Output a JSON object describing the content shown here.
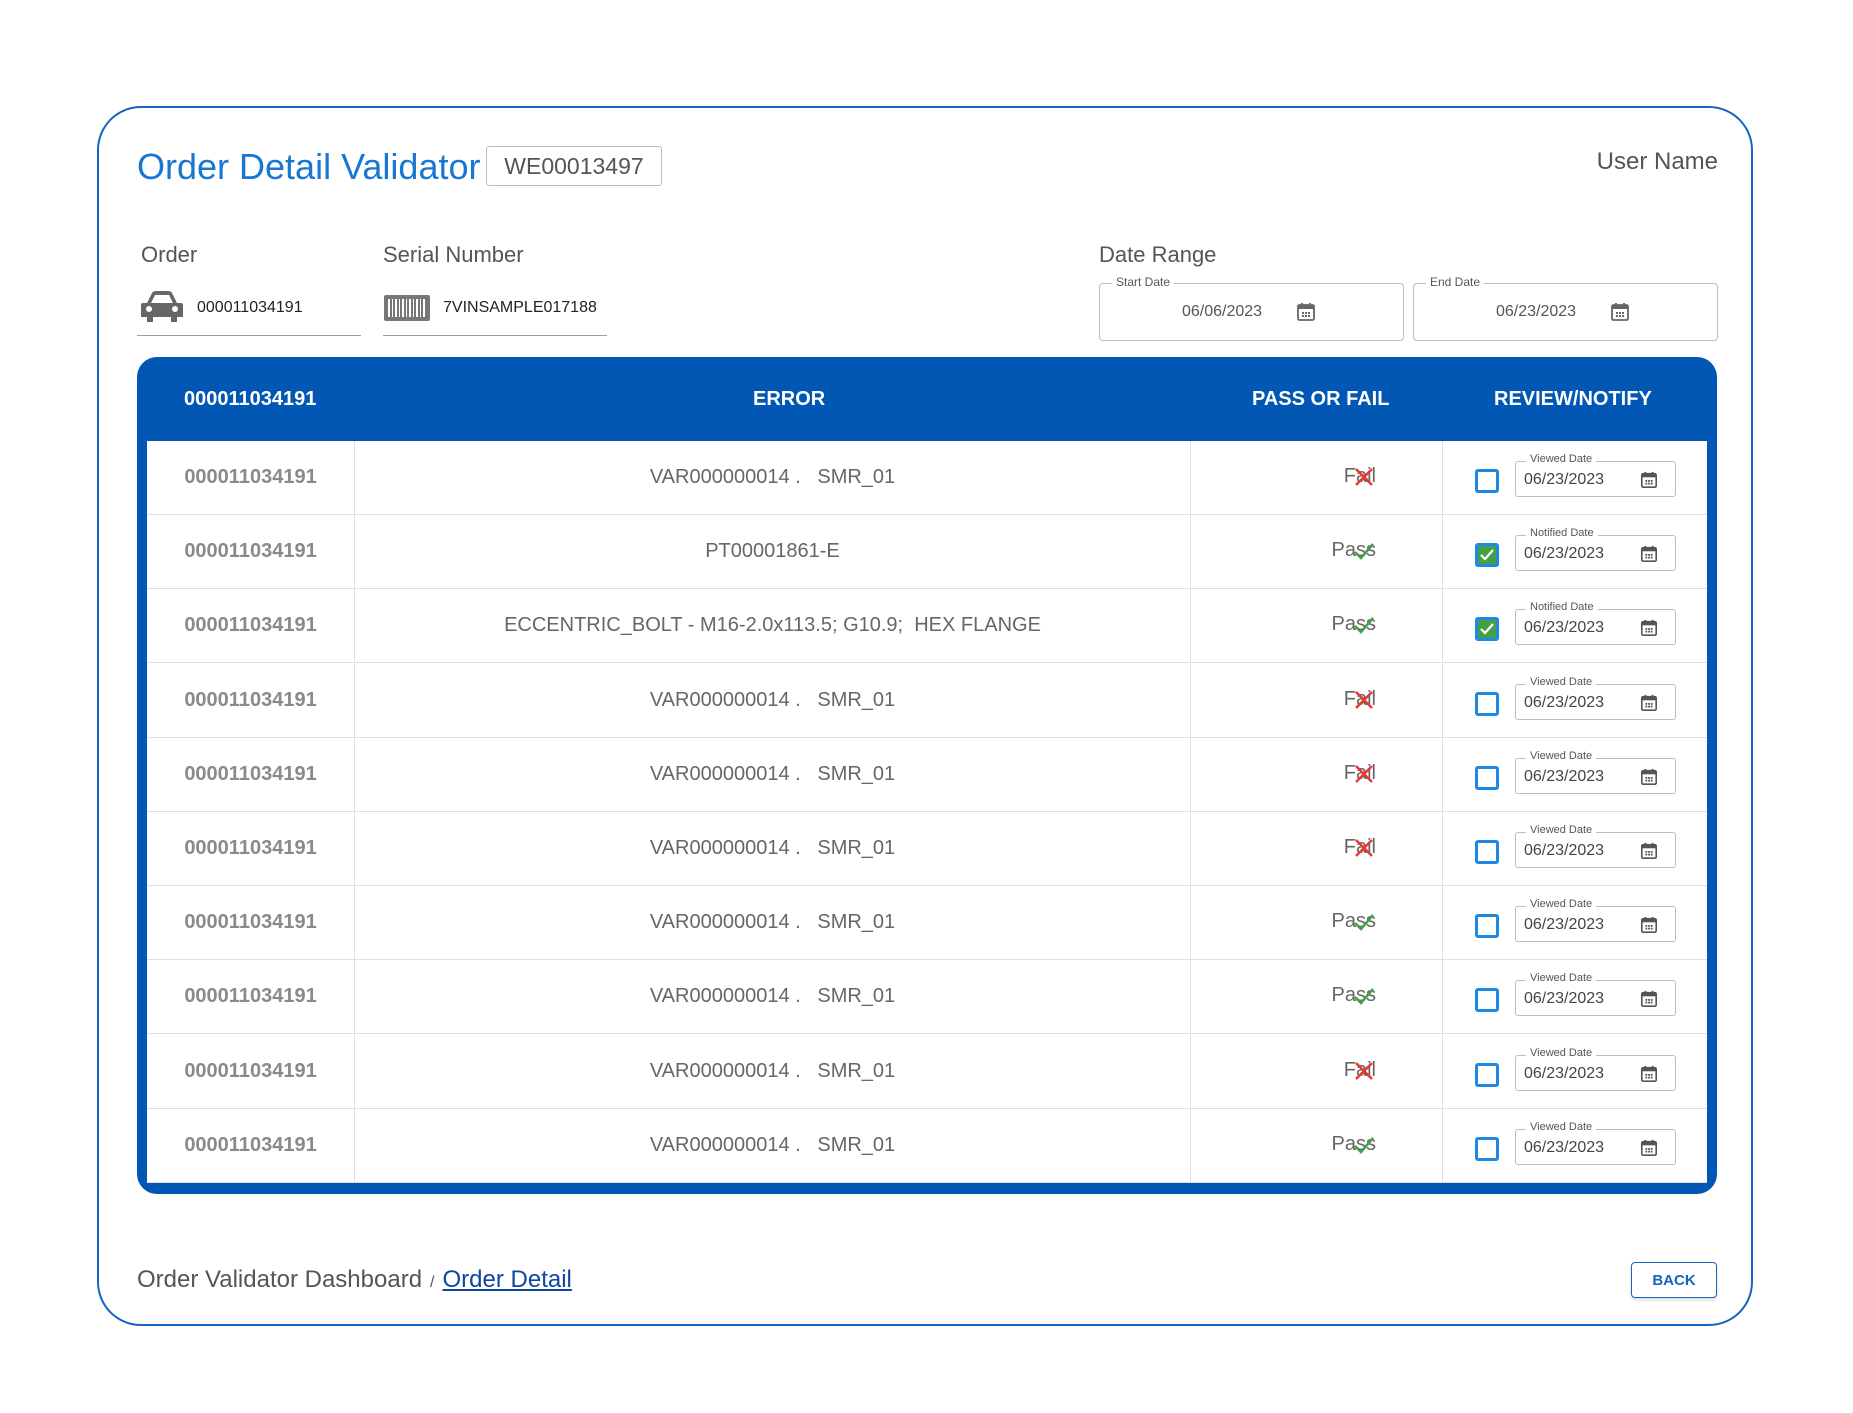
{
  "header": {
    "title": "Order Detail Validator",
    "order_code": "WE00013497",
    "user_name": "User Name"
  },
  "filters": {
    "order_label": "Order",
    "order_value": "000011034191",
    "order_icon": "car-icon",
    "serial_label": "Serial Number",
    "serial_value": "7VINSAMPLE017188",
    "serial_icon": "barcode-icon",
    "date_range_label": "Date Range",
    "start_date_label": "Start Date",
    "start_date": "06/06/2023",
    "end_date_label": "End Date",
    "end_date": "06/23/2023"
  },
  "table": {
    "columns": [
      "000011034191",
      "ERROR",
      "PASS OR FAIL",
      "REVIEW/NOTIFY"
    ],
    "rows": [
      {
        "order": "000011034191",
        "error": "VAR000000014 .   SMR_01",
        "result": "Fail",
        "checked": false,
        "date_label": "Viewed Date",
        "date": "06/23/2023"
      },
      {
        "order": "000011034191",
        "error": "PT00001861-E",
        "result": "Pass",
        "checked": true,
        "date_label": "Notified Date",
        "date": "06/23/2023"
      },
      {
        "order": "000011034191",
        "error": "ECCENTRIC_BOLT - M16-2.0x113.5; G10.9;  HEX FLANGE",
        "result": "Pass",
        "checked": true,
        "date_label": "Notified Date",
        "date": "06/23/2023"
      },
      {
        "order": "000011034191",
        "error": "VAR000000014 .   SMR_01",
        "result": "Fail",
        "checked": false,
        "date_label": "Viewed Date",
        "date": "06/23/2023"
      },
      {
        "order": "000011034191",
        "error": "VAR000000014 .   SMR_01",
        "result": "Fail",
        "checked": false,
        "date_label": "Viewed Date",
        "date": "06/23/2023"
      },
      {
        "order": "000011034191",
        "error": "VAR000000014 .   SMR_01",
        "result": "Fail",
        "checked": false,
        "date_label": "Viewed Date",
        "date": "06/23/2023"
      },
      {
        "order": "000011034191",
        "error": "VAR000000014 .   SMR_01",
        "result": "Pass",
        "checked": false,
        "date_label": "Viewed Date",
        "date": "06/23/2023"
      },
      {
        "order": "000011034191",
        "error": "VAR000000014 .   SMR_01",
        "result": "Pass",
        "checked": false,
        "date_label": "Viewed Date",
        "date": "06/23/2023"
      },
      {
        "order": "000011034191",
        "error": "VAR000000014 .   SMR_01",
        "result": "Fail",
        "checked": false,
        "date_label": "Viewed Date",
        "date": "06/23/2023"
      },
      {
        "order": "000011034191",
        "error": "VAR000000014 .   SMR_01",
        "result": "Pass",
        "checked": false,
        "date_label": "Viewed Date",
        "date": "06/23/2023"
      }
    ]
  },
  "footer": {
    "breadcrumb_root": "Order Validator Dashboard",
    "breadcrumb_sep": "/",
    "breadcrumb_current": "Order Detail",
    "back_label": "BACK"
  },
  "colors": {
    "accent": "#1976d2",
    "table_header": "#0157b3",
    "pass": "#43a047",
    "fail": "#e53935"
  }
}
